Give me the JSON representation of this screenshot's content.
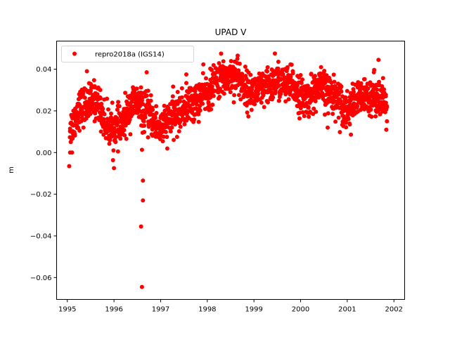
{
  "chart_data": {
    "type": "scatter",
    "title": "UPAD V",
    "xlabel": "",
    "ylabel": "m",
    "xlim": [
      1994.77,
      2002.23
    ],
    "ylim": [
      -0.0705,
      0.0535
    ],
    "xticks": [
      1995,
      1996,
      1997,
      1998,
      1999,
      2000,
      2001,
      2002
    ],
    "xtick_labels": [
      "1995",
      "1996",
      "1997",
      "1998",
      "1999",
      "2000",
      "2001",
      "2002"
    ],
    "yticks": [
      0.04,
      0.02,
      0.0,
      -0.02,
      -0.04,
      -0.06
    ],
    "ytick_labels": [
      "0.04",
      "0.02",
      "0.00",
      "−0.02",
      "−0.04",
      "−0.06"
    ],
    "grid": false,
    "legend": {
      "position": "top-left",
      "entries": [
        {
          "label": "repro2018a (IGS14)",
          "marker": "circle",
          "color": "#ff0000"
        }
      ]
    },
    "series": [
      {
        "name": "repro2018a (IGS14)",
        "color": "#ff0000",
        "marker": "circle",
        "x_start": 1995.05,
        "x_step": 0.008,
        "y_mean_knots": {
          "x": [
            1995.05,
            1995.3,
            1995.6,
            1995.9,
            1996.1,
            1996.45,
            1996.7,
            1997.0,
            1997.3,
            1997.7,
            1998.0,
            1998.3,
            1998.6,
            1998.9,
            1999.2,
            1999.5,
            1999.8,
            2000.1,
            2000.4,
            2000.7,
            2001.0,
            2001.3,
            2001.6,
            2001.85
          ],
          "y": [
            0.012,
            0.022,
            0.025,
            0.012,
            0.012,
            0.024,
            0.019,
            0.012,
            0.018,
            0.024,
            0.029,
            0.036,
            0.037,
            0.029,
            0.03,
            0.034,
            0.032,
            0.026,
            0.031,
            0.028,
            0.021,
            0.026,
            0.028,
            0.022
          ]
        },
        "y_spread": 0.0045,
        "outliers": [
          {
            "x": 1995.04,
            "y": -0.0065
          },
          {
            "x": 1995.06,
            "y": 0.0
          },
          {
            "x": 1995.1,
            "y": 0.0
          },
          {
            "x": 1996.0,
            "y": -0.0075
          },
          {
            "x": 1996.6,
            "y": 0.0013
          },
          {
            "x": 1996.62,
            "y": -0.0135
          },
          {
            "x": 1996.62,
            "y": -0.023
          },
          {
            "x": 1996.58,
            "y": -0.0355
          },
          {
            "x": 1996.6,
            "y": -0.0645
          },
          {
            "x": 1999.45,
            "y": 0.0475
          },
          {
            "x": 1998.65,
            "y": 0.0465
          },
          {
            "x": 2001.67,
            "y": 0.0445
          },
          {
            "x": 1996.7,
            "y": 0.0385
          },
          {
            "x": 1997.55,
            "y": 0.0375
          },
          {
            "x": 1995.42,
            "y": 0.039
          },
          {
            "x": 2000.58,
            "y": 0.012
          },
          {
            "x": 2001.85,
            "y": 0.015
          }
        ]
      }
    ]
  }
}
